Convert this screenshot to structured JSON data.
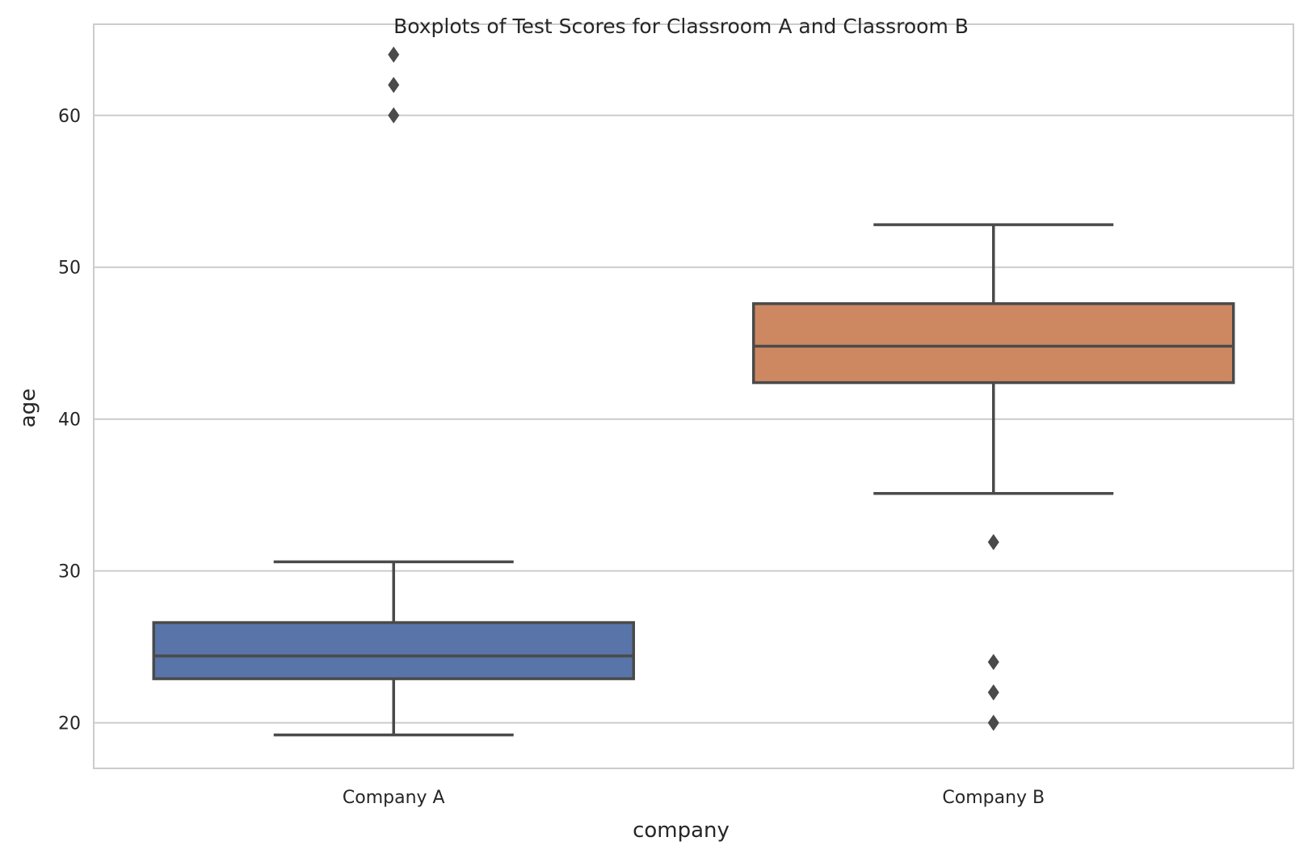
{
  "chart_data": {
    "type": "boxplot",
    "title": "Boxplots of Test Scores for Classroom A and Classroom B",
    "xlabel": "company",
    "ylabel": "age",
    "categories": [
      "Company A",
      "Company B"
    ],
    "ylim": [
      17,
      66
    ],
    "yticks": [
      20,
      30,
      40,
      50,
      60
    ],
    "grid": true,
    "boxes": [
      {
        "category": "Company A",
        "whisker_low": 19.2,
        "q1": 22.9,
        "median": 24.4,
        "q3": 26.6,
        "whisker_high": 30.6,
        "outliers": [
          60,
          62,
          64
        ],
        "color": "#5874a8"
      },
      {
        "category": "Company B",
        "whisker_low": 35.1,
        "q1": 42.4,
        "median": 44.8,
        "q3": 47.6,
        "whisker_high": 52.8,
        "outliers": [
          20,
          22,
          24,
          31.9
        ],
        "color": "#cd8862"
      }
    ],
    "colors": {
      "grid": "#cccccc",
      "frame": "#cccccc",
      "line": "#4a4a4a"
    }
  }
}
